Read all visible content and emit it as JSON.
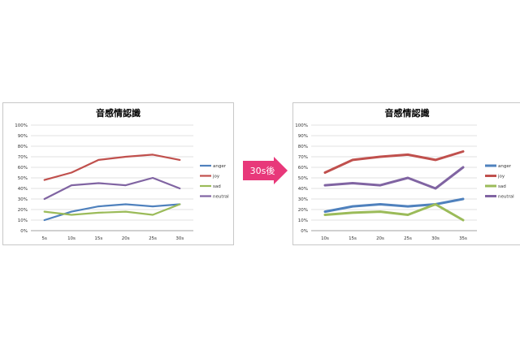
{
  "arrow": {
    "label": "30s後",
    "color": "#e8387a"
  },
  "colors": {
    "anger": "#4f81bd",
    "joy": "#c0504d",
    "sad": "#9bbb59",
    "neutral": "#8064a2"
  },
  "chart_data": [
    {
      "type": "line",
      "title": "音感情認識",
      "categories": [
        "5s",
        "10s",
        "15s",
        "20s",
        "25s",
        "30s"
      ],
      "ylim": [
        0,
        1
      ],
      "yticks": [
        "0%",
        "10%",
        "20%",
        "30%",
        "40%",
        "50%",
        "60%",
        "70%",
        "80%",
        "90%",
        "100%"
      ],
      "grid": true,
      "legend": "right",
      "series": [
        {
          "name": "anger",
          "values": [
            0.1,
            0.18,
            0.23,
            0.25,
            0.23,
            0.25
          ]
        },
        {
          "name": "joy",
          "values": [
            0.48,
            0.55,
            0.67,
            0.7,
            0.72,
            0.67
          ]
        },
        {
          "name": "sad",
          "values": [
            0.18,
            0.15,
            0.17,
            0.18,
            0.15,
            0.25
          ]
        },
        {
          "name": "neutral",
          "values": [
            0.3,
            0.43,
            0.45,
            0.43,
            0.5,
            0.4
          ]
        }
      ]
    },
    {
      "type": "line",
      "title": "音感情認識",
      "categories": [
        "10s",
        "15s",
        "20s",
        "25s",
        "30s",
        "35s"
      ],
      "ylim": [
        0,
        1
      ],
      "yticks": [
        "0%",
        "10%",
        "20%",
        "30%",
        "40%",
        "50%",
        "60%",
        "70%",
        "80%",
        "90%",
        "100%"
      ],
      "grid": true,
      "legend": "right",
      "series": [
        {
          "name": "anger",
          "values": [
            0.18,
            0.23,
            0.25,
            0.23,
            0.25,
            0.3
          ]
        },
        {
          "name": "joy",
          "values": [
            0.55,
            0.67,
            0.7,
            0.72,
            0.67,
            0.75
          ]
        },
        {
          "name": "sad",
          "values": [
            0.15,
            0.17,
            0.18,
            0.15,
            0.25,
            0.1
          ]
        },
        {
          "name": "neutral",
          "values": [
            0.43,
            0.45,
            0.43,
            0.5,
            0.4,
            0.6
          ]
        }
      ]
    }
  ]
}
